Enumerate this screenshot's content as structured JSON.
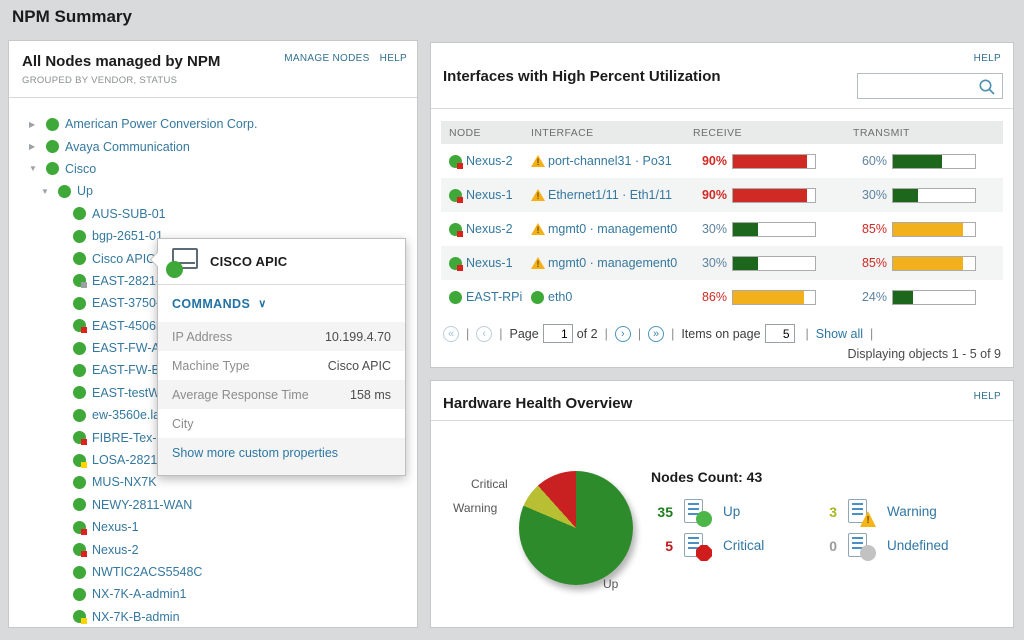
{
  "page": {
    "title": "NPM Summary"
  },
  "nodes_panel": {
    "title": "All Nodes managed by NPM",
    "subtitle": "GROUPED BY VENDOR, STATUS",
    "manage_link": "MANAGE NODES",
    "help_link": "HELP",
    "tree": [
      {
        "level": 1,
        "arrow": "collapsed",
        "icon": "green",
        "label": "American Power Conversion Corp."
      },
      {
        "level": 1,
        "arrow": "collapsed",
        "icon": "green",
        "label": "Avaya Communication"
      },
      {
        "level": 1,
        "arrow": "expanded",
        "icon": "green",
        "label": "Cisco"
      },
      {
        "level": 2,
        "arrow": "expanded",
        "icon": "green",
        "label": "Up"
      },
      {
        "level": 3,
        "icon": "green",
        "label": "AUS-SUB-01"
      },
      {
        "level": 3,
        "icon": "green",
        "label": "bgp-2651-01"
      },
      {
        "level": 3,
        "icon": "green",
        "label": "Cisco APIC"
      },
      {
        "level": 3,
        "icon": "green-gray",
        "label": "EAST-2821-"
      },
      {
        "level": 3,
        "icon": "green",
        "label": "EAST-3750-"
      },
      {
        "level": 3,
        "icon": "green-red",
        "label": "EAST-4506E"
      },
      {
        "level": 3,
        "icon": "green",
        "label": "EAST-FW-A"
      },
      {
        "level": 3,
        "icon": "green",
        "label": "EAST-FW-B"
      },
      {
        "level": 3,
        "icon": "green",
        "label": "EAST-testW"
      },
      {
        "level": 3,
        "icon": "green",
        "label": "ew-3560e.la"
      },
      {
        "level": 3,
        "icon": "green-red",
        "label": "FIBRE-Tex-N"
      },
      {
        "level": 3,
        "icon": "green-yellow",
        "label": "LOSA-2821"
      },
      {
        "level": 3,
        "icon": "green",
        "label": "MUS-NX7K"
      },
      {
        "level": 3,
        "icon": "green",
        "label": "NEWY-2811-WAN"
      },
      {
        "level": 3,
        "icon": "green-red",
        "label": "Nexus-1"
      },
      {
        "level": 3,
        "icon": "green-red",
        "label": "Nexus-2"
      },
      {
        "level": 3,
        "icon": "green",
        "label": "NWTIC2ACS5548C"
      },
      {
        "level": 3,
        "icon": "green",
        "label": "NX-7K-A-admin1"
      },
      {
        "level": 3,
        "icon": "green-yellow",
        "label": "NX-7K-B-admin"
      }
    ]
  },
  "popup": {
    "title": "CISCO APIC",
    "commands_label": "COMMANDS",
    "chevron": "∨",
    "rows": [
      {
        "label": "IP Address",
        "value": "10.199.4.70"
      },
      {
        "label": "Machine Type",
        "value": "Cisco APIC"
      },
      {
        "label": "Average Response Time",
        "value": "158 ms"
      },
      {
        "label": "City",
        "value": ""
      }
    ],
    "more_link": "Show more custom properties"
  },
  "interfaces_panel": {
    "title": "Interfaces with High Percent Utilization",
    "help_link": "HELP",
    "search_value": "",
    "columns": [
      "NODE",
      "INTERFACE",
      "RECEIVE",
      "TRANSMIT"
    ],
    "rows": [
      {
        "node": "Nexus-2",
        "node_icon": "green-red",
        "iface_icon": "warning",
        "interface": "port-channel31 · Po31",
        "receive": {
          "pct": 90,
          "bar": "red",
          "cls": "crit"
        },
        "transmit": {
          "pct": 60,
          "bar": "green",
          "cls": "norm"
        }
      },
      {
        "node": "Nexus-1",
        "node_icon": "green-red",
        "iface_icon": "warning",
        "interface": "Ethernet1/11 · Eth1/11",
        "receive": {
          "pct": 90,
          "bar": "red",
          "cls": "crit"
        },
        "transmit": {
          "pct": 30,
          "bar": "green",
          "cls": "norm"
        }
      },
      {
        "node": "Nexus-2",
        "node_icon": "green-red",
        "iface_icon": "warning",
        "interface": "mgmt0 · management0",
        "receive": {
          "pct": 30,
          "bar": "green",
          "cls": "norm"
        },
        "transmit": {
          "pct": 85,
          "bar": "amber",
          "cls": "warn"
        }
      },
      {
        "node": "Nexus-1",
        "node_icon": "green-red",
        "iface_icon": "warning",
        "interface": "mgmt0 · management0",
        "receive": {
          "pct": 30,
          "bar": "green",
          "cls": "norm"
        },
        "transmit": {
          "pct": 85,
          "bar": "amber",
          "cls": "warn"
        }
      },
      {
        "node": "EAST-RPi",
        "node_icon": "green",
        "iface_icon": "green",
        "interface": "eth0",
        "receive": {
          "pct": 86,
          "bar": "amber",
          "cls": "warn"
        },
        "transmit": {
          "pct": 24,
          "bar": "green",
          "cls": "norm"
        }
      }
    ],
    "bar_colors": {
      "red": "#d02a24",
      "green": "#1d671d",
      "amber": "#f2b01c"
    },
    "pagination": {
      "first": "«",
      "prev": "‹",
      "next": "›",
      "last": "»",
      "sep": "|",
      "page_label": "Page",
      "page_value": "1",
      "of_label": "of 2",
      "items_label": "Items on page",
      "items_value": "5",
      "show_all": "Show all",
      "summary": "Displaying objects 1 - 5 of 9"
    }
  },
  "hardware_panel": {
    "title": "Hardware Health Overview",
    "help_link": "HELP",
    "nodes_count_label": "Nodes Count: 43",
    "pie_labels": {
      "critical": "Critical",
      "warning": "Warning",
      "up": "Up"
    },
    "legend": [
      {
        "count": "35",
        "count_color": "#1e7d1e",
        "badge": "up",
        "label": "Up"
      },
      {
        "count": "3",
        "count_color": "#aab41c",
        "badge": "warning",
        "label": "Warning"
      },
      {
        "count": "5",
        "count_color": "#c01818",
        "badge": "critical",
        "label": "Critical"
      },
      {
        "count": "0",
        "count_color": "#9b9b9b",
        "badge": "undefined",
        "label": "Undefined"
      }
    ]
  },
  "chart_data": {
    "type": "pie",
    "title": "Hardware Health Overview",
    "categories": [
      "Up",
      "Warning",
      "Critical",
      "Undefined"
    ],
    "values": [
      35,
      3,
      5,
      0
    ],
    "colors": [
      "#2e8b2c",
      "#b9bf33",
      "#c92121",
      "#bdbdbd"
    ],
    "total": 43,
    "total_label": "Nodes Count: 43",
    "legend_position": "right"
  }
}
